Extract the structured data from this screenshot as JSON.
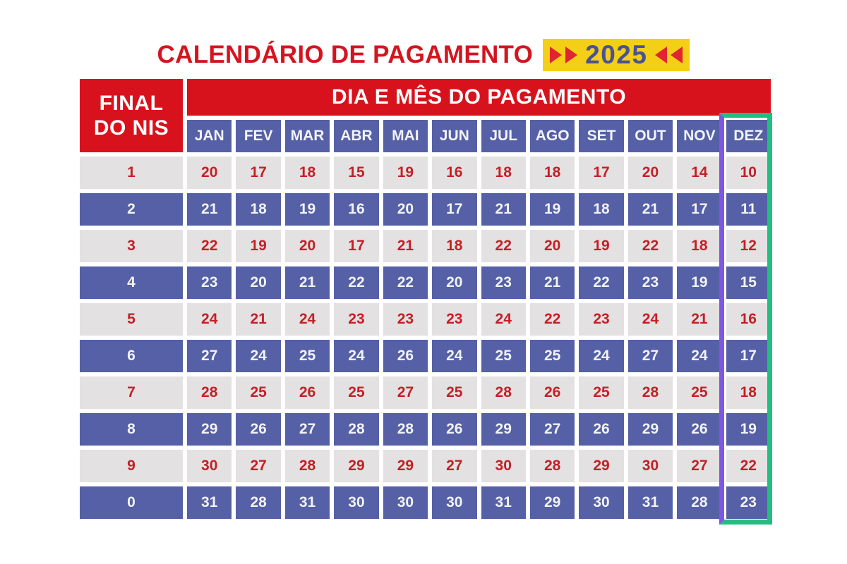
{
  "title": {
    "text": "CALENDÁRIO DE PAGAMENTO",
    "year": "2025"
  },
  "table": {
    "corner_header_line1": "FINAL",
    "corner_header_line2": "DO NIS",
    "span_header": "DIA E MÊS DO PAGAMENTO",
    "months": [
      "JAN",
      "FEV",
      "MAR",
      "ABR",
      "MAI",
      "JUN",
      "JUL",
      "AGO",
      "SET",
      "OUT",
      "NOV",
      "DEZ"
    ],
    "highlighted_month": "DEZ",
    "rows": [
      {
        "final_nis": "1",
        "days": [
          "20",
          "17",
          "18",
          "15",
          "19",
          "16",
          "18",
          "18",
          "17",
          "20",
          "14",
          "10"
        ]
      },
      {
        "final_nis": "2",
        "days": [
          "21",
          "18",
          "19",
          "16",
          "20",
          "17",
          "21",
          "19",
          "18",
          "21",
          "17",
          "11"
        ]
      },
      {
        "final_nis": "3",
        "days": [
          "22",
          "19",
          "20",
          "17",
          "21",
          "18",
          "22",
          "20",
          "19",
          "22",
          "18",
          "12"
        ]
      },
      {
        "final_nis": "4",
        "days": [
          "23",
          "20",
          "21",
          "22",
          "22",
          "20",
          "23",
          "21",
          "22",
          "23",
          "19",
          "15"
        ]
      },
      {
        "final_nis": "5",
        "days": [
          "24",
          "21",
          "24",
          "23",
          "23",
          "23",
          "24",
          "22",
          "23",
          "24",
          "21",
          "16"
        ]
      },
      {
        "final_nis": "6",
        "days": [
          "27",
          "24",
          "25",
          "24",
          "26",
          "24",
          "25",
          "25",
          "24",
          "27",
          "24",
          "17"
        ]
      },
      {
        "final_nis": "7",
        "days": [
          "28",
          "25",
          "26",
          "25",
          "27",
          "25",
          "28",
          "26",
          "25",
          "28",
          "25",
          "18"
        ]
      },
      {
        "final_nis": "8",
        "days": [
          "29",
          "26",
          "27",
          "28",
          "28",
          "26",
          "29",
          "27",
          "26",
          "29",
          "26",
          "19"
        ]
      },
      {
        "final_nis": "9",
        "days": [
          "30",
          "27",
          "28",
          "29",
          "29",
          "27",
          "30",
          "28",
          "29",
          "30",
          "27",
          "22"
        ]
      },
      {
        "final_nis": "0",
        "days": [
          "31",
          "28",
          "31",
          "30",
          "30",
          "30",
          "31",
          "29",
          "30",
          "31",
          "28",
          "23"
        ]
      }
    ]
  },
  "colors": {
    "header_red": "#d8121c",
    "title_red": "#d31520",
    "cell_blue": "#5560a6",
    "cell_gray": "#e3e1e2",
    "number_red": "#c32026",
    "badge_yellow": "#f3cf15",
    "badge_navy": "#4a5396",
    "arrow_red": "#e02531",
    "highlight_purple": "#7e58de",
    "highlight_green": "#23bd80"
  },
  "chart_data": {
    "type": "table",
    "title": "CALENDÁRIO DE PAGAMENTO 2025",
    "columns": [
      "FINAL DO NIS",
      "JAN",
      "FEV",
      "MAR",
      "ABR",
      "MAI",
      "JUN",
      "JUL",
      "AGO",
      "SET",
      "OUT",
      "NOV",
      "DEZ"
    ],
    "rows": [
      [
        "1",
        20,
        17,
        18,
        15,
        19,
        16,
        18,
        18,
        17,
        20,
        14,
        10
      ],
      [
        "2",
        21,
        18,
        19,
        16,
        20,
        17,
        21,
        19,
        18,
        21,
        17,
        11
      ],
      [
        "3",
        22,
        19,
        20,
        17,
        21,
        18,
        22,
        20,
        19,
        22,
        18,
        12
      ],
      [
        "4",
        23,
        20,
        21,
        22,
        22,
        20,
        23,
        21,
        22,
        23,
        19,
        15
      ],
      [
        "5",
        24,
        21,
        24,
        23,
        23,
        23,
        24,
        22,
        23,
        24,
        21,
        16
      ],
      [
        "6",
        27,
        24,
        25,
        24,
        26,
        24,
        25,
        25,
        24,
        27,
        24,
        17
      ],
      [
        "7",
        28,
        25,
        26,
        25,
        27,
        25,
        28,
        26,
        25,
        28,
        25,
        18
      ],
      [
        "8",
        29,
        26,
        27,
        28,
        28,
        26,
        29,
        27,
        26,
        29,
        26,
        19
      ],
      [
        "9",
        30,
        27,
        28,
        29,
        29,
        27,
        30,
        28,
        29,
        30,
        27,
        22
      ],
      [
        "0",
        31,
        28,
        31,
        30,
        30,
        30,
        31,
        29,
        30,
        31,
        28,
        23
      ]
    ],
    "annotations": "DEZ (December) column outlined: purple left edge, green top/right/bottom edges"
  }
}
